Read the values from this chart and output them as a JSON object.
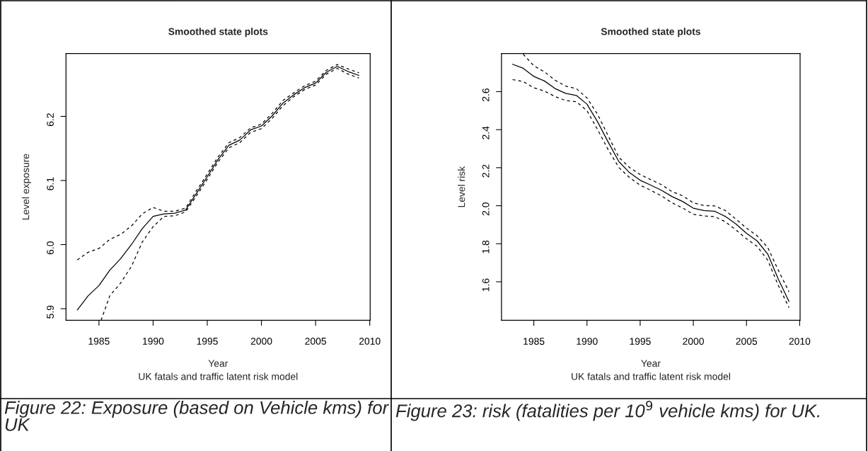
{
  "chart_data": [
    {
      "type": "line",
      "title": "Smoothed state plots",
      "xlabel": "Year",
      "ylabel": "Level exposure",
      "annotations": [
        "UK fatals and traffic latent risk model",
        "Figure 22: Exposure (based on Vehicle kms) for UK"
      ],
      "x": [
        1983,
        1984,
        1985,
        1986,
        1987,
        1988,
        1989,
        1990,
        1991,
        1992,
        1993,
        1994,
        1995,
        1996,
        1997,
        1998,
        1999,
        2000,
        2001,
        2002,
        2003,
        2004,
        2005,
        2006,
        2007,
        2008,
        2009
      ],
      "xlim": [
        1981.96,
        2010.04
      ],
      "xticks": [
        1985,
        1990,
        1995,
        2000,
        2005,
        2010
      ],
      "ylim": [
        5.882,
        6.298
      ],
      "yticks": [
        5.9,
        {
          "value": 6.0,
          "label": "6.0"
        },
        6.1,
        6.2
      ],
      "series": [
        {
          "color": "#000000",
          "line_style": "solid",
          "values": [
            5.898,
            5.92,
            5.936,
            5.96,
            5.978,
            6.0,
            6.025,
            6.044,
            6.048,
            6.049,
            6.054,
            6.08,
            6.106,
            6.133,
            6.155,
            6.163,
            6.179,
            6.185,
            6.201,
            6.221,
            6.234,
            6.245,
            6.252,
            6.269,
            6.278,
            6.27,
            6.264
          ]
        },
        {
          "color": "#000000",
          "line_style": "dashed",
          "values": [
            5.976,
            5.988,
            5.994,
            6.008,
            6.016,
            6.029,
            6.048,
            6.058,
            6.052,
            6.052,
            6.057,
            6.084,
            6.11,
            6.137,
            6.159,
            6.167,
            6.182,
            6.188,
            6.205,
            6.225,
            6.237,
            6.248,
            6.255,
            6.272,
            6.281,
            6.274,
            6.268
          ]
        },
        {
          "color": "#000000",
          "line_style": "dashed",
          "x": [
            1985.2,
            1986,
            1987,
            1988,
            1989,
            1990,
            1991,
            1992,
            1993,
            1994,
            1995,
            1996,
            1997,
            1998,
            1999,
            2000,
            2001,
            2002,
            2003,
            2004,
            2005,
            2006,
            2007,
            2008,
            2009
          ],
          "values": [
            5.882,
            5.92,
            5.94,
            5.966,
            6.004,
            6.028,
            6.044,
            6.045,
            6.051,
            6.076,
            6.102,
            6.129,
            6.151,
            6.159,
            6.175,
            6.181,
            6.197,
            6.217,
            6.231,
            6.242,
            6.249,
            6.266,
            6.275,
            6.266,
            6.26
          ]
        }
      ]
    },
    {
      "type": "line",
      "title": "Smoothed state plots",
      "xlabel": "Year",
      "ylabel": "Level risk",
      "annotations": [
        "UK fatals and traffic latent risk model",
        "Figure 23: risk (fatalities per 10$^{9}$ vehicle kms) for UK."
      ],
      "x": [
        1983,
        1984,
        1985,
        1986,
        1987,
        1988,
        1989,
        1990,
        1991,
        1992,
        1993,
        1994,
        1995,
        1996,
        1997,
        1998,
        1999,
        2000,
        2001,
        2002,
        2003,
        2004,
        2005,
        2006,
        2007,
        2008,
        2009
      ],
      "xlim": [
        1981.96,
        2010.04
      ],
      "xticks": [
        1985,
        1990,
        1995,
        2000,
        2005,
        2010
      ],
      "ylim": [
        1.397,
        2.8
      ],
      "yticks": [
        1.6,
        1.8,
        {
          "value": 2.0,
          "label": "2.0"
        },
        2.2,
        2.4,
        2.6
      ],
      "series": [
        {
          "color": "#000000",
          "line_style": "solid",
          "values": [
            2.744,
            2.723,
            2.68,
            2.656,
            2.616,
            2.591,
            2.58,
            2.534,
            2.441,
            2.334,
            2.232,
            2.174,
            2.134,
            2.108,
            2.081,
            2.048,
            2.022,
            1.987,
            1.975,
            1.971,
            1.944,
            1.904,
            1.855,
            1.815,
            1.746,
            1.613,
            1.496
          ]
        },
        {
          "color": "#000000",
          "line_style": "dashed",
          "x": [
            1984,
            1985,
            1986,
            1987,
            1988,
            1989,
            1990,
            1991,
            1992,
            1993,
            1994,
            1995,
            1996,
            1997,
            1998,
            1999,
            2000,
            2001,
            2002,
            2003,
            2004,
            2005,
            2006,
            2007,
            2008,
            2009
          ],
          "values": [
            2.797,
            2.736,
            2.704,
            2.66,
            2.629,
            2.616,
            2.567,
            2.48,
            2.367,
            2.254,
            2.201,
            2.164,
            2.137,
            2.111,
            2.074,
            2.052,
            2.015,
            2.001,
            1.999,
            1.975,
            1.93,
            1.882,
            1.842,
            1.78,
            1.66,
            1.547
          ]
        },
        {
          "color": "#000000",
          "line_style": "dashed",
          "values": [
            2.663,
            2.653,
            2.62,
            2.603,
            2.574,
            2.553,
            2.547,
            2.5,
            2.4,
            2.294,
            2.201,
            2.148,
            2.108,
            2.081,
            2.052,
            2.015,
            1.988,
            1.955,
            1.946,
            1.943,
            1.916,
            1.873,
            1.826,
            1.786,
            1.713,
            1.58,
            1.464
          ]
        }
      ]
    }
  ]
}
